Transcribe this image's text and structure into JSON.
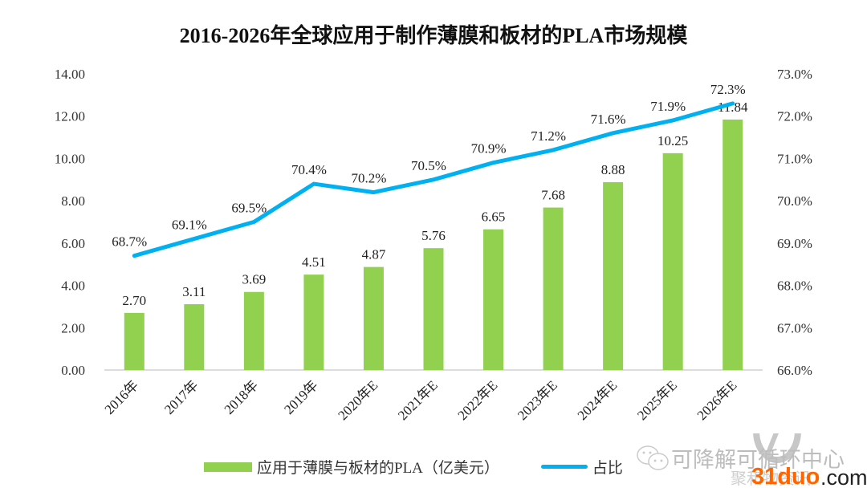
{
  "chart_data": {
    "type": "bar",
    "title": "2016-2026年全球应用于制作薄膜和板材的PLA市场规模",
    "categories": [
      "2016年",
      "2017年",
      "2018年",
      "2019年",
      "2020年E",
      "2021年E",
      "2022年E",
      "2023年E",
      "2024年E",
      "2025年E",
      "2026年E"
    ],
    "series": [
      {
        "name": "应用于薄膜与板材的PLA（亿美元）",
        "type": "bar",
        "axis": "left",
        "color": "#92d050",
        "values": [
          2.7,
          3.11,
          3.69,
          4.51,
          4.87,
          5.76,
          6.65,
          7.68,
          8.88,
          10.25,
          11.84
        ],
        "labels": [
          "2.70",
          "3.11",
          "3.69",
          "4.51",
          "4.87",
          "5.76",
          "6.65",
          "7.68",
          "8.88",
          "10.25",
          "11.84"
        ]
      },
      {
        "name": "占比",
        "type": "line",
        "axis": "right",
        "color": "#00b0f0",
        "values": [
          68.7,
          69.1,
          69.5,
          70.4,
          70.2,
          70.5,
          70.9,
          71.2,
          71.6,
          71.9,
          72.3
        ],
        "labels": [
          "68.7%",
          "69.1%",
          "69.5%",
          "70.4%",
          "70.2%",
          "70.5%",
          "70.9%",
          "71.2%",
          "71.6%",
          "71.9%",
          "72.3%"
        ]
      }
    ],
    "y_left": {
      "label": "",
      "ylim": [
        0,
        14
      ],
      "ticks": [
        "0.00",
        "2.00",
        "4.00",
        "6.00",
        "8.00",
        "10.00",
        "12.00",
        "14.00"
      ]
    },
    "y_right": {
      "label": "",
      "ylim": [
        66,
        73
      ],
      "ticks": [
        "66.0%",
        "67.0%",
        "68.0%",
        "69.0%",
        "70.0%",
        "71.0%",
        "72.0%",
        "73.0%"
      ]
    },
    "xlabel": "",
    "grid": false,
    "legend": {
      "position": "bottom",
      "entries": [
        "应用于薄膜与板材的PLA（亿美元）",
        "占比"
      ]
    }
  },
  "watermark": {
    "wechat_account": "可降解可循环中心",
    "sub_text": "聚和物资讯",
    "brand_number": "31duo",
    "brand_suffix": ".com",
    "brand_color": "#ff6600"
  }
}
